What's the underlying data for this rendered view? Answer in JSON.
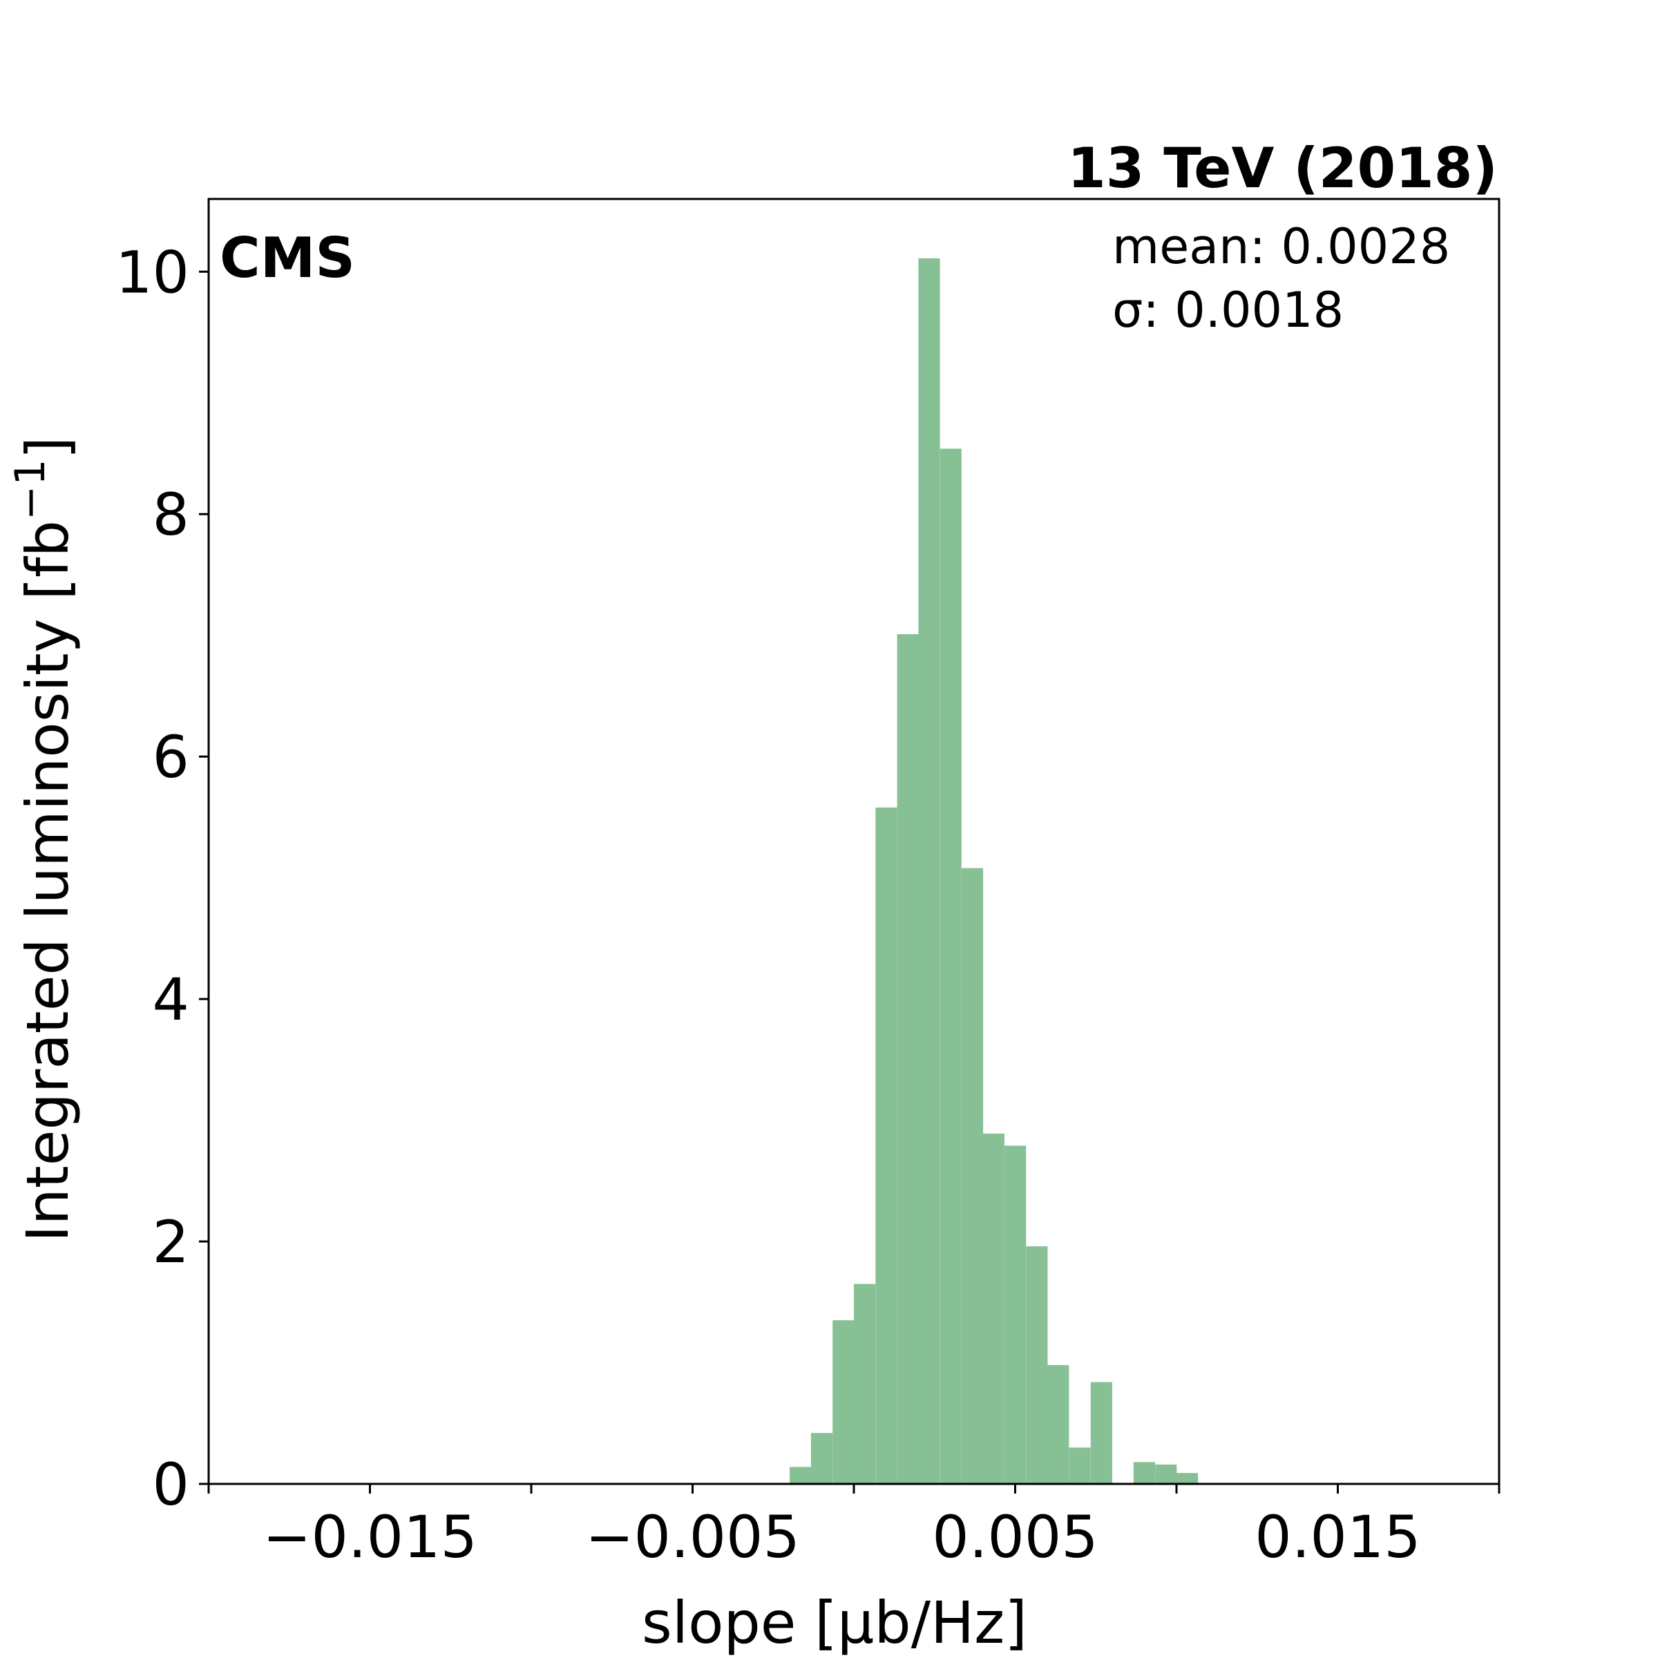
{
  "chart_data": {
    "type": "bar",
    "experiment_label": "CMS",
    "energy_label": "13 TeV (2018)",
    "xlabel": "slope [µb/Hz]",
    "ylabel": "Integrated luminosity [fb",
    "ylabel_superscript": "−1",
    "ylabel_suffix": "]",
    "annotations": [
      "mean: 0.0028",
      "σ: 0.0018"
    ],
    "xlim": [
      -0.02,
      0.02
    ],
    "ylim": [
      0,
      10.6
    ],
    "x_ticks": [
      {
        "value": -0.015,
        "label": "−0.015"
      },
      {
        "value": -0.005,
        "label": "−0.005"
      },
      {
        "value": 0.005,
        "label": "0.005"
      },
      {
        "value": 0.015,
        "label": "0.015"
      }
    ],
    "x_minor_ticks": [
      -0.02,
      -0.01,
      0.0,
      0.01,
      0.02
    ],
    "y_ticks": [
      {
        "value": 0,
        "label": "0"
      },
      {
        "value": 2,
        "label": "2"
      },
      {
        "value": 4,
        "label": "4"
      },
      {
        "value": 6,
        "label": "6"
      },
      {
        "value": 8,
        "label": "8"
      },
      {
        "value": 10,
        "label": "10"
      }
    ],
    "bin_width": 0.000667,
    "bar_color": "#88c095",
    "bins": [
      {
        "left": -0.00199,
        "value": 0.14
      },
      {
        "left": -0.00133,
        "value": 0.42
      },
      {
        "left": -0.00066,
        "value": 1.35
      },
      {
        "left": 0.0,
        "value": 1.65
      },
      {
        "left": 0.00067,
        "value": 5.58
      },
      {
        "left": 0.00134,
        "value": 7.01
      },
      {
        "left": 0.002,
        "value": 10.11
      },
      {
        "left": 0.00267,
        "value": 8.54
      },
      {
        "left": 0.00334,
        "value": 5.08
      },
      {
        "left": 0.004,
        "value": 2.89
      },
      {
        "left": 0.00467,
        "value": 2.79
      },
      {
        "left": 0.00534,
        "value": 1.96
      },
      {
        "left": 0.006,
        "value": 0.98
      },
      {
        "left": 0.00667,
        "value": 0.3
      },
      {
        "left": 0.00734,
        "value": 0.84
      },
      {
        "left": 0.00867,
        "value": 0.18
      },
      {
        "left": 0.00934,
        "value": 0.16
      },
      {
        "left": 0.01,
        "value": 0.09
      }
    ]
  }
}
